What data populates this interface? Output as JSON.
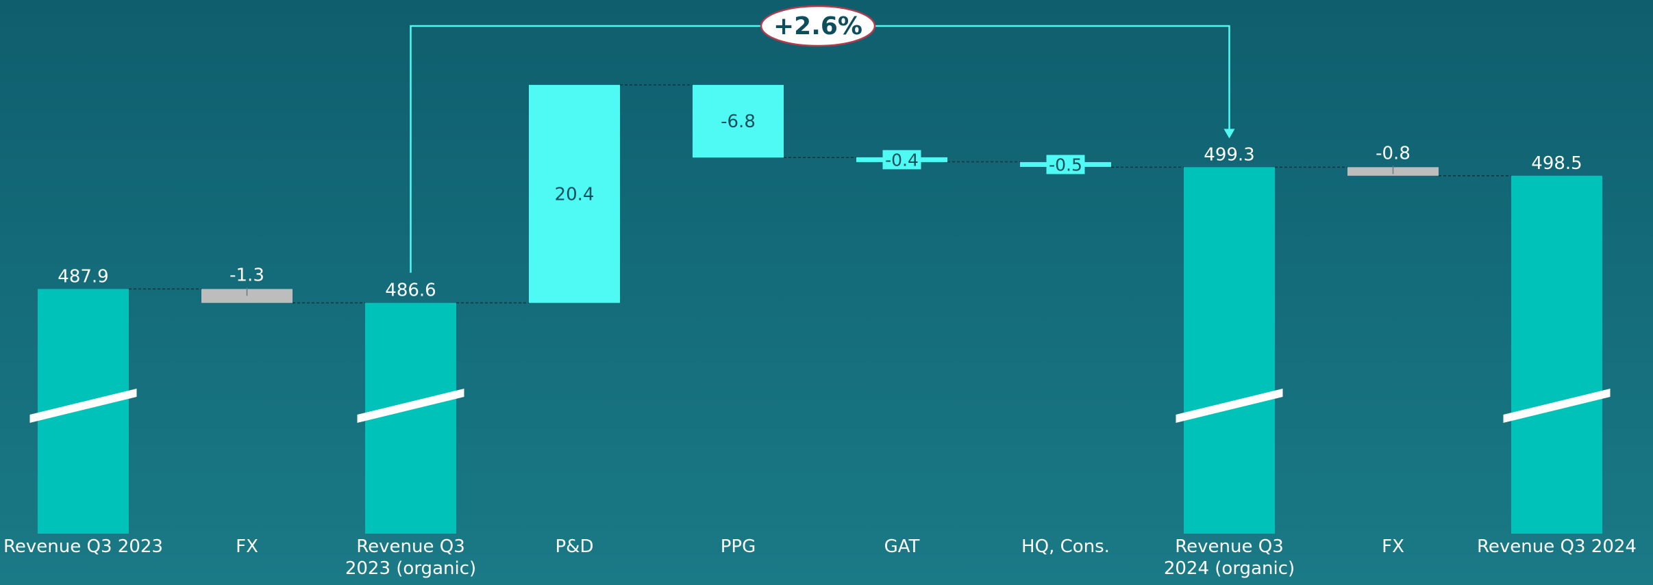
{
  "chart_data": {
    "type": "waterfall",
    "title": "",
    "xlabel": "",
    "ylabel": "",
    "ylim": [
      465,
      512
    ],
    "axis_break": true,
    "grid": false,
    "legend": "none",
    "bars": [
      {
        "category": "Revenue Q3 2023",
        "label_lines": [
          "Revenue Q3 2023"
        ],
        "kind": "total",
        "value": 487.9,
        "label": "487.9"
      },
      {
        "category": "FX",
        "label_lines": [
          "FX"
        ],
        "kind": "delta",
        "style": "fx",
        "value": -1.3,
        "label": "-1.3"
      },
      {
        "category": "Revenue Q3 2023 (organic)",
        "label_lines": [
          "Revenue Q3",
          "2023 (organic)"
        ],
        "kind": "total",
        "value": 486.6,
        "label": "486.6"
      },
      {
        "category": "P&D",
        "label_lines": [
          "P&D"
        ],
        "kind": "delta",
        "style": "segment",
        "value": 20.4,
        "label": "20.4"
      },
      {
        "category": "PPG",
        "label_lines": [
          "PPG"
        ],
        "kind": "delta",
        "style": "segment",
        "value": -6.8,
        "label": "-6.8"
      },
      {
        "category": "GAT",
        "label_lines": [
          "GAT"
        ],
        "kind": "delta",
        "style": "segment",
        "value": -0.4,
        "label": "-0.4"
      },
      {
        "category": "HQ, Cons.",
        "label_lines": [
          "HQ, Cons."
        ],
        "kind": "delta",
        "style": "segment",
        "value": -0.5,
        "label": "-0.5"
      },
      {
        "category": "Revenue Q3 2024 (organic)",
        "label_lines": [
          "Revenue Q3",
          "2024 (organic)"
        ],
        "kind": "total",
        "value": 499.3,
        "label": "499.3"
      },
      {
        "category": "FX",
        "label_lines": [
          "FX"
        ],
        "kind": "delta",
        "style": "fx",
        "value": -0.8,
        "label": "-0.8"
      },
      {
        "category": "Revenue Q3 2024",
        "label_lines": [
          "Revenue Q3 2024"
        ],
        "kind": "total",
        "value": 498.5,
        "label": "498.5"
      }
    ],
    "annotation": {
      "text": "+2.6%",
      "from_category": "Revenue Q3 2023 (organic)",
      "to_category": "Revenue Q3 2024 (organic)"
    }
  },
  "colors": {
    "total": "#00c2b8",
    "segment": "#4ffaf5",
    "fx": "#bdbdbd",
    "bar_text": "#0e4e5c",
    "label_text": "#ffffff",
    "connector": "#0a3540",
    "bracket": "#4ffaf5",
    "badge_fill": "#ffffff",
    "badge_stroke": "#b53a4e",
    "badge_text": "#0e4e5c"
  }
}
